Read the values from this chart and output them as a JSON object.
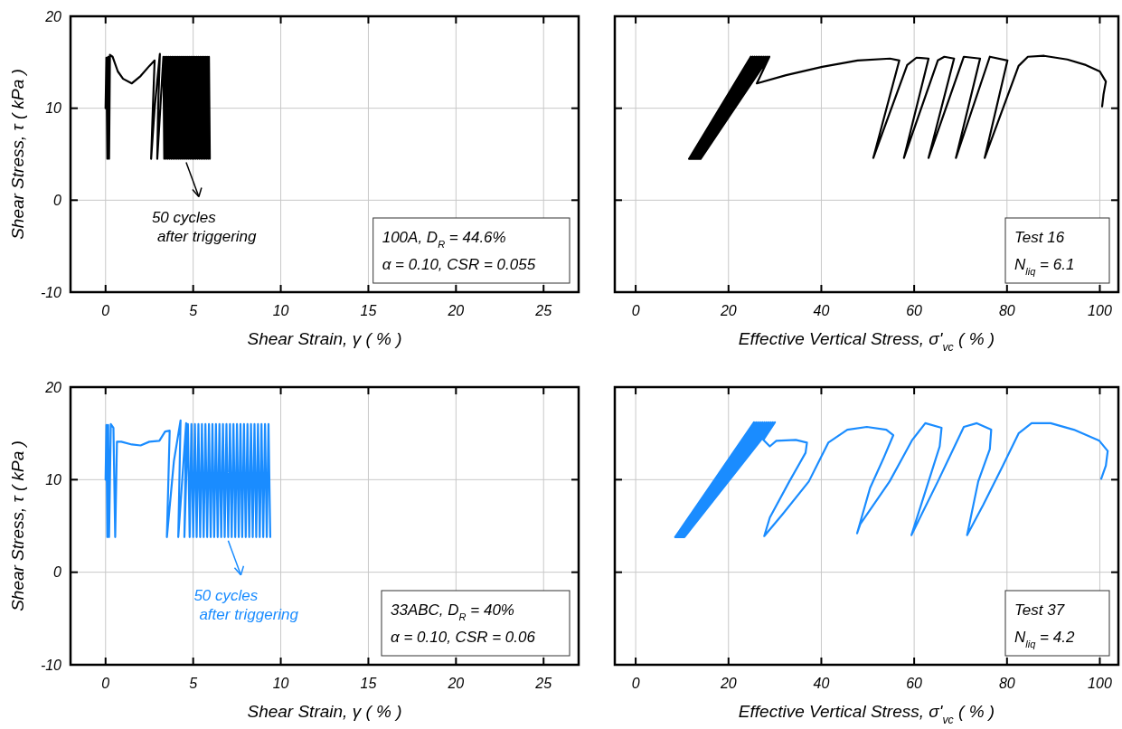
{
  "chart_data": [
    {
      "type": "line",
      "xlabel": "Shear Strain, γ ( % )",
      "ylabel": "Shear Stress, τ ( kPa )",
      "xlim": [
        -2,
        27
      ],
      "ylim": [
        -10,
        20
      ],
      "xticks": [
        0,
        5,
        10,
        15,
        20,
        25
      ],
      "yticks": [
        -10,
        0,
        10,
        20
      ],
      "grid": true,
      "series": [
        {
          "color": "#000000",
          "x": [
            0,
            0.05,
            0.1,
            0.15,
            0.2,
            0.25,
            0.4,
            0.7,
            1.0,
            1.5,
            2.0,
            2.5,
            2.8,
            2.7,
            2.6,
            2.8,
            3.1,
            3.0,
            2.95,
            3.3,
            3.35,
            3.4,
            3.45,
            3.5,
            3.55,
            3.6,
            3.65,
            3.7,
            3.75,
            3.8,
            3.85,
            3.9,
            3.95,
            4.0,
            4.05,
            4.1,
            4.15,
            4.2,
            4.25,
            4.3,
            4.35,
            4.4,
            4.45,
            4.5,
            4.55,
            4.6,
            4.65,
            4.7,
            4.75,
            4.8,
            4.85,
            4.9,
            4.95,
            5.0,
            5.05,
            5.1,
            5.15,
            5.2,
            5.25,
            5.3,
            5.35,
            5.4,
            5.45,
            5.5,
            5.55,
            5.6,
            5.65,
            5.7,
            5.75,
            5.8,
            5.85,
            5.9,
            5.95
          ],
          "values": [
            10,
            15.5,
            4.5,
            15.6,
            4.5,
            15.8,
            15.6,
            14,
            13.2,
            12.7,
            13.5,
            14.6,
            15.2,
            10,
            4.5,
            10,
            15.9,
            10,
            4.5,
            15.6,
            4.5,
            15.6,
            4.5,
            15.6,
            4.5,
            15.6,
            4.5,
            15.6,
            4.5,
            15.6,
            4.5,
            15.6,
            4.5,
            15.6,
            4.5,
            15.6,
            4.5,
            15.6,
            4.5,
            15.6,
            4.5,
            15.6,
            4.5,
            15.6,
            4.5,
            15.6,
            4.5,
            15.6,
            4.5,
            15.6,
            4.5,
            15.6,
            4.5,
            15.6,
            4.5,
            15.6,
            4.5,
            15.6,
            4.5,
            15.6,
            4.5,
            15.6,
            4.5,
            15.6,
            4.5,
            15.6,
            4.5,
            15.6,
            4.5,
            15.6,
            4.5,
            15.6,
            4.5
          ]
        }
      ],
      "annotations": [
        {
          "text": "50 cycles\nafter triggering",
          "x": 4.6,
          "y": 4.5
        },
        "100A, D$_{R}$ = 44.6%\nα = 0.10, CSR = 0.055"
      ]
    },
    {
      "type": "line",
      "xlabel": "Effective Vertical Stress, σ'$_{vc}$ ( % )",
      "xlim": [
        -4.5,
        104
      ],
      "ylim": [
        -10,
        20
      ],
      "xticks": [
        0,
        20,
        40,
        60,
        80,
        100
      ],
      "yticks": [
        -10,
        0,
        10,
        20
      ],
      "grid": true,
      "tick_labels": "x",
      "series": [
        {
          "color": "#000000",
          "x": [
            11.5,
            24.8,
            11.75,
            25.2,
            12,
            25.6,
            12.25,
            26,
            12.5,
            26.4,
            12.75,
            26.8,
            13,
            27.2,
            13.25,
            27.6,
            13.5,
            28,
            13.75,
            28.4,
            14,
            28.8,
            26.1,
            32.4,
            40.2,
            47.8,
            54.8,
            56.8,
            51.2,
            58.5,
            60.5,
            63.1,
            57.8,
            65.1,
            66.5,
            68.6,
            63.1,
            70.7,
            74.2,
            69,
            76.3,
            80.1,
            75.2,
            82.5,
            84.5,
            88,
            93,
            97,
            100,
            101.3,
            100.8,
            100.5
          ],
          "values": [
            4.5,
            15.6,
            4.5,
            15.6,
            4.5,
            15.6,
            4.5,
            15.6,
            4.5,
            15.6,
            4.5,
            15.6,
            4.5,
            15.6,
            4.5,
            15.6,
            4.5,
            15.6,
            4.5,
            15.6,
            4.5,
            15.6,
            12.7,
            13.6,
            14.5,
            15.2,
            15.4,
            15.2,
            4.6,
            14.7,
            15.5,
            15.4,
            4.6,
            15.2,
            15.6,
            15.4,
            4.6,
            15.6,
            15.4,
            4.6,
            15.6,
            15.2,
            4.6,
            14.6,
            15.6,
            15.7,
            15.3,
            14.7,
            14,
            12.9,
            11.5,
            10.2
          ]
        }
      ],
      "annotations": [
        "Test 16\nN$_{liq}$ = 6.1"
      ]
    },
    {
      "type": "line",
      "xlabel": "Shear Strain, γ ( % )",
      "ylabel": "Shear Stress, τ ( kPa )",
      "xlim": [
        -2,
        27
      ],
      "ylim": [
        -10,
        20
      ],
      "xticks": [
        0,
        5,
        10,
        15,
        20,
        25
      ],
      "yticks": [
        -10,
        0,
        10,
        20
      ],
      "grid": true,
      "series": [
        {
          "color": "#1a8cff",
          "x": [
            0,
            0.05,
            0.1,
            0.15,
            0.2,
            0.3,
            0.45,
            0.55,
            0.65,
            0.9,
            1.5,
            2,
            2.5,
            3.07,
            3.4,
            3.66,
            3.5,
            3.9,
            4.28,
            4.15,
            4.45,
            4.6,
            4.5,
            4.7,
            4.8,
            4.9,
            5.0,
            5.1,
            5.2,
            5.3,
            5.4,
            5.5,
            5.6,
            5.7,
            5.8,
            5.9,
            6.0,
            6.1,
            6.2,
            6.3,
            6.4,
            6.5,
            6.6,
            6.7,
            6.8,
            6.9,
            7.0,
            7.1,
            7.2,
            7.3,
            7.4,
            7.5,
            7.6,
            7.7,
            7.8,
            7.9,
            8.0,
            8.1,
            8.2,
            8.3,
            8.4,
            8.5,
            8.6,
            8.7,
            8.8,
            8.9,
            9.0,
            9.1,
            9.2,
            9.3,
            9.4
          ],
          "values": [
            10,
            15.9,
            3.8,
            15.9,
            3.8,
            16,
            15.6,
            3.8,
            14.1,
            14.1,
            13.8,
            13.7,
            14.1,
            14.2,
            15.2,
            15.3,
            3.8,
            12,
            16.4,
            3.8,
            12,
            16.1,
            3.8,
            16,
            3.8,
            16,
            3.8,
            16,
            3.8,
            16,
            3.8,
            16,
            3.8,
            16,
            3.8,
            16,
            3.8,
            16,
            3.8,
            16,
            3.8,
            16,
            3.8,
            16,
            3.8,
            16,
            3.8,
            16,
            3.8,
            16,
            3.8,
            16,
            3.8,
            16,
            3.8,
            16,
            3.8,
            16,
            3.8,
            16,
            3.8,
            16,
            3.8,
            16,
            3.8,
            16,
            3.8,
            16,
            3.8,
            16,
            3.8
          ]
        }
      ],
      "annotations": [
        {
          "text": "50 cycles\nafter triggering",
          "x": 7,
          "y": 3.8
        },
        "33ABC, D$_{R}$ = 40%\nα = 0.10, CSR = 0.06"
      ]
    },
    {
      "type": "line",
      "xlabel": "Effective Vertical Stress, σ'$_{vc}$ ( % )",
      "xlim": [
        -4.5,
        104
      ],
      "ylim": [
        -10,
        20
      ],
      "xticks": [
        0,
        20,
        40,
        60,
        80,
        100
      ],
      "yticks": [
        -10,
        0,
        10,
        20
      ],
      "grid": true,
      "tick_labels": "x",
      "series": [
        {
          "color": "#1a8cff",
          "x": [
            8.5,
            25.5,
            8.7,
            25.95,
            8.9,
            26.4,
            9.1,
            26.85,
            9.3,
            27.3,
            9.5,
            27.75,
            9.7,
            28.2,
            9.9,
            28.65,
            10.1,
            29.1,
            10.3,
            29.55,
            10.5,
            30,
            27.5,
            28.9,
            30.3,
            34.5,
            36.9,
            36.6,
            33.1,
            28.9,
            27.7,
            31.7,
            37.3,
            41.5,
            45.6,
            49.8,
            54,
            55.5,
            53.3,
            50.5,
            47.7,
            48.4,
            54.7,
            59.6,
            62.4,
            65.9,
            65.5,
            62.4,
            59.4,
            65.1,
            70.7,
            73.5,
            76.6,
            76.3,
            73.8,
            71.4,
            74.9,
            79.1,
            82.5,
            85.3,
            89.4,
            94.4,
            99.9,
            101.7,
            101.3,
            100.3
          ],
          "values": [
            3.8,
            16.2,
            3.8,
            16.2,
            3.8,
            16.2,
            3.8,
            16.2,
            3.8,
            16.2,
            3.8,
            16.2,
            3.8,
            16.2,
            3.8,
            16.2,
            3.8,
            16.2,
            3.8,
            16.2,
            3.8,
            16.2,
            14.3,
            13.6,
            14.2,
            14.3,
            14,
            12.9,
            9.8,
            5.9,
            3.9,
            6.3,
            9.8,
            14,
            15.4,
            15.7,
            15.4,
            14.8,
            12.2,
            9.1,
            4.2,
            5.2,
            9.8,
            14.3,
            16.1,
            15.6,
            13.6,
            8.7,
            4,
            9.8,
            15.7,
            16.1,
            15.4,
            13.3,
            9.8,
            4,
            7.3,
            11.5,
            15,
            16.1,
            16.1,
            15.4,
            14.2,
            13.1,
            11.5,
            10.1
          ]
        }
      ],
      "annotations": [
        "Test 37\nN$_{liq}$ = 4.2"
      ]
    }
  ]
}
